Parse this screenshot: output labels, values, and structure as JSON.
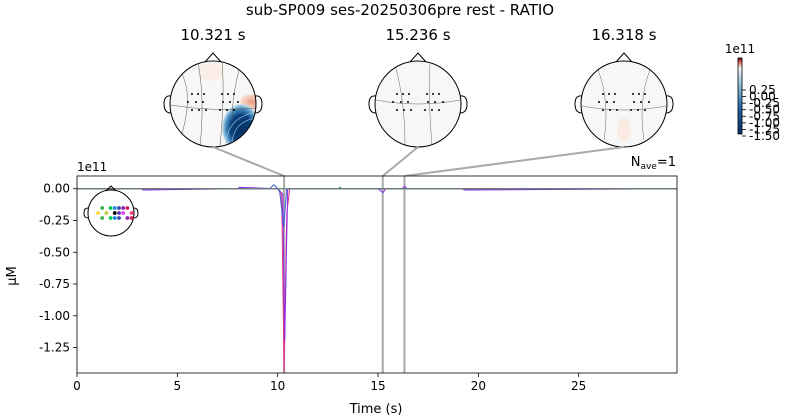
{
  "figure_title": "sub-SP009 ses-20250306pre rest - RATIO",
  "topomaps": [
    {
      "label": "10.321 s",
      "time": 10.321
    },
    {
      "label": "15.236 s",
      "time": 15.236
    },
    {
      "label": "16.318 s",
      "time": 16.318
    }
  ],
  "colorbar": {
    "exponent": "1e11",
    "ticks": [
      "0.25",
      "0.00",
      "-0.25",
      "-0.50",
      "-0.75",
      "-1.00",
      "-1.25",
      "-1.50"
    ],
    "colors": {
      "top": "#67001f",
      "mid": "#f7f7f7",
      "bottom": "#053061"
    }
  },
  "nave_label": "N",
  "nave_sub": "ave",
  "nave_value": "=1",
  "chart_data": {
    "type": "line",
    "title": "sub-SP009 ses-20250306pre rest - RATIO",
    "xlabel": "Time (s)",
    "ylabel": "µM",
    "y_exponent": "1e11",
    "xlim": [
      0,
      29.9
    ],
    "ylim": [
      -1.45,
      0.1
    ],
    "xticks": [
      0,
      5,
      10,
      15,
      20,
      25
    ],
    "yticks": [
      0.0,
      -0.25,
      -0.5,
      -0.75,
      -1.0,
      -1.25
    ],
    "ytick_labels": [
      "0.00",
      "-0.25",
      "-0.50",
      "-0.75",
      "-1.00",
      "-1.25"
    ],
    "grid": false,
    "highlight_times": [
      10.321,
      15.236,
      16.318
    ],
    "series": [
      {
        "color": "#e6308a",
        "x": [
          0,
          10.0,
          10.2,
          10.32,
          10.45,
          10.6,
          15.2,
          16.3,
          29.9
        ],
        "y": [
          0,
          0,
          -0.05,
          -1.45,
          -0.2,
          0,
          0,
          0,
          0
        ]
      },
      {
        "color": "#8a2be2",
        "x": [
          0,
          3.2,
          3.3,
          8.0,
          8.1,
          10.0,
          10.25,
          10.35,
          10.5,
          15.0,
          15.25,
          15.4,
          16.2,
          16.32,
          16.45,
          19.2,
          19.3,
          29.9
        ],
        "y": [
          0,
          0,
          -0.01,
          0,
          0.01,
          0,
          -0.04,
          -1.2,
          0,
          0,
          -0.03,
          0,
          0,
          0.02,
          0,
          0,
          -0.01,
          0
        ]
      },
      {
        "color": "#3a5bd9",
        "x": [
          0,
          9.6,
          9.8,
          9.95,
          10.1,
          10.3,
          10.45,
          29.9
        ],
        "y": [
          0,
          0,
          0.03,
          0.01,
          -0.02,
          -0.3,
          0,
          0
        ]
      },
      {
        "color": "#2aa44a",
        "x": [
          0,
          13.0,
          13.1,
          13.2,
          29.9
        ],
        "y": [
          0,
          0,
          0.01,
          0,
          0
        ]
      },
      {
        "color": "#777777",
        "x": [
          0,
          29.9
        ],
        "y": [
          0,
          0
        ]
      }
    ]
  },
  "sensor_legend_colors": [
    "#3cb44b",
    "#00c853",
    "#1e88e5",
    "#3949ab",
    "#8e24aa",
    "#d81b60",
    "#fdd835",
    "#c0ca33",
    "#000000",
    "#5e35b1",
    "#e040fb",
    "#ff4081"
  ]
}
